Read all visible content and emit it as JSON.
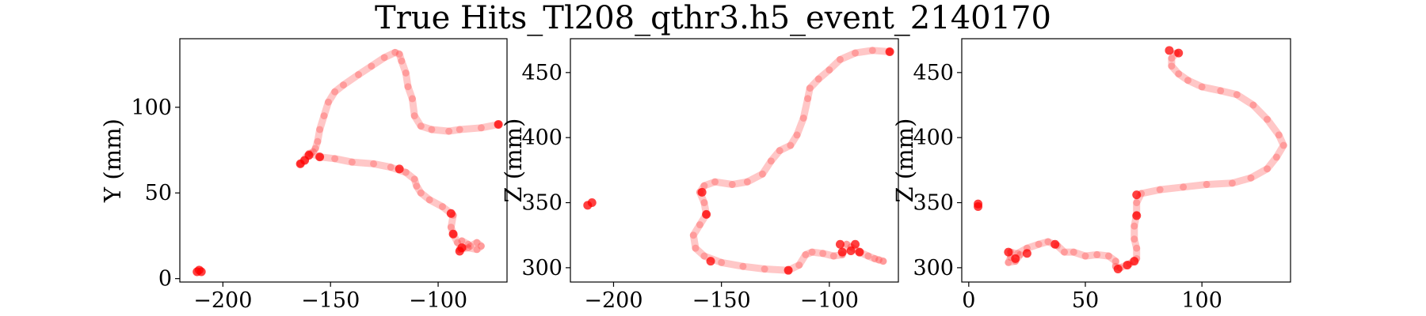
{
  "figure_title": "True Hits_Tl208_qthr3.h5_event_2140170",
  "style": {
    "track_color": "#ff0000",
    "track_opacity": 0.22,
    "blob_opacity": 0.75
  },
  "chart_data": [
    {
      "type": "scatter",
      "xlabel": "",
      "ylabel": "Y (mm)",
      "xlim": [
        -220,
        -68
      ],
      "ylim": [
        -2,
        140
      ],
      "xticks": [
        -200,
        -150,
        -100
      ],
      "xtick_labels": [
        "−200",
        "−150",
        "−100"
      ],
      "yticks": [
        0,
        50,
        100
      ],
      "ytick_labels": [
        "0",
        "50",
        "100"
      ],
      "grid": false,
      "track": [
        [
          -72,
          90
        ],
        [
          -80,
          88
        ],
        [
          -90,
          87
        ],
        [
          -95,
          86
        ],
        [
          -103,
          87
        ],
        [
          -108,
          89
        ],
        [
          -111,
          95
        ],
        [
          -112,
          105
        ],
        [
          -114,
          112
        ],
        [
          -115,
          120
        ],
        [
          -117,
          127
        ],
        [
          -118,
          131
        ],
        [
          -120,
          132
        ],
        [
          -125,
          129
        ],
        [
          -131,
          124
        ],
        [
          -137,
          119
        ],
        [
          -144,
          113
        ],
        [
          -148,
          109
        ],
        [
          -151,
          103
        ],
        [
          -153,
          95
        ],
        [
          -155,
          87
        ],
        [
          -156,
          80
        ],
        [
          -157,
          76
        ],
        [
          -158,
          74
        ],
        [
          -160,
          73
        ],
        [
          -164,
          67
        ],
        [
          -159,
          73
        ],
        [
          -155,
          71
        ],
        [
          -148,
          70
        ],
        [
          -140,
          68
        ],
        [
          -130,
          67
        ],
        [
          -122,
          65
        ],
        [
          -115,
          62
        ],
        [
          -111,
          58
        ],
        [
          -110,
          54
        ],
        [
          -108,
          50
        ],
        [
          -104,
          46
        ],
        [
          -98,
          42
        ],
        [
          -93,
          37
        ],
        [
          -94,
          30
        ],
        [
          -93,
          26
        ],
        [
          -91,
          21
        ],
        [
          -88,
          18
        ],
        [
          -85,
          19
        ],
        [
          -82,
          21
        ],
        [
          -80,
          19
        ],
        [
          -82,
          17
        ],
        [
          -86,
          18
        ],
        [
          -90,
          17
        ],
        [
          -89,
          22
        ],
        [
          -86,
          20
        ]
      ],
      "blobs": [
        [
          -72,
          90
        ],
        [
          -160,
          72
        ],
        [
          -155,
          71
        ],
        [
          -164,
          67
        ],
        [
          -162,
          69
        ],
        [
          -118,
          64
        ],
        [
          -94,
          38
        ],
        [
          -93,
          26
        ],
        [
          -89,
          18
        ],
        [
          -90,
          16
        ],
        [
          -211,
          5
        ],
        [
          -212,
          4
        ],
        [
          -210,
          4
        ]
      ]
    },
    {
      "type": "scatter",
      "xlabel": "",
      "ylabel": "Z (mm)",
      "xlim": [
        -220,
        -68
      ],
      "ylim": [
        289,
        476
      ],
      "xticks": [
        -200,
        -150,
        -100
      ],
      "xtick_labels": [
        "−200",
        "−150",
        "−100"
      ],
      "yticks": [
        300,
        350,
        400,
        450
      ],
      "ytick_labels": [
        "300",
        "350",
        "400",
        "450"
      ],
      "grid": false,
      "track": [
        [
          -72,
          466
        ],
        [
          -80,
          467
        ],
        [
          -88,
          465
        ],
        [
          -95,
          460
        ],
        [
          -100,
          452
        ],
        [
          -105,
          445
        ],
        [
          -109,
          438
        ],
        [
          -110,
          430
        ],
        [
          -112,
          415
        ],
        [
          -115,
          402
        ],
        [
          -118,
          394
        ],
        [
          -123,
          390
        ],
        [
          -127,
          382
        ],
        [
          -131,
          372
        ],
        [
          -138,
          366
        ],
        [
          -145,
          364
        ],
        [
          -153,
          366
        ],
        [
          -158,
          363
        ],
        [
          -160,
          358
        ],
        [
          -158,
          350
        ],
        [
          -157,
          341
        ],
        [
          -160,
          333
        ],
        [
          -163,
          325
        ],
        [
          -162,
          315
        ],
        [
          -158,
          309
        ],
        [
          -150,
          304
        ],
        [
          -140,
          301
        ],
        [
          -130,
          299
        ],
        [
          -119,
          298
        ],
        [
          -114,
          302
        ],
        [
          -111,
          310
        ],
        [
          -108,
          312
        ],
        [
          -103,
          311
        ],
        [
          -98,
          309
        ],
        [
          -94,
          310
        ],
        [
          -92,
          318
        ],
        [
          -90,
          316
        ],
        [
          -86,
          312
        ],
        [
          -82,
          309
        ],
        [
          -79,
          307
        ],
        [
          -77,
          306
        ],
        [
          -75,
          305
        ]
      ],
      "blobs": [
        [
          -72,
          466
        ],
        [
          -159,
          358
        ],
        [
          -157,
          341
        ],
        [
          -155,
          305
        ],
        [
          -119,
          298
        ],
        [
          -95,
          318
        ],
        [
          -94,
          312
        ],
        [
          -90,
          313
        ],
        [
          -88,
          318
        ],
        [
          -86,
          312
        ],
        [
          -212,
          348
        ],
        [
          -210,
          350
        ]
      ]
    },
    {
      "type": "scatter",
      "xlabel": "",
      "ylabel": "Z (mm)",
      "xlim": [
        -3,
        138
      ],
      "ylim": [
        289,
        476
      ],
      "xticks": [
        0,
        50,
        100
      ],
      "xtick_labels": [
        "0",
        "50",
        "100"
      ],
      "yticks": [
        300,
        350,
        400,
        450
      ],
      "ytick_labels": [
        "300",
        "350",
        "400",
        "450"
      ],
      "grid": false,
      "track": [
        [
          89,
          465
        ],
        [
          87,
          461
        ],
        [
          87,
          455
        ],
        [
          90,
          449
        ],
        [
          94,
          444
        ],
        [
          100,
          439
        ],
        [
          108,
          436
        ],
        [
          115,
          433
        ],
        [
          122,
          425
        ],
        [
          128,
          414
        ],
        [
          133,
          402
        ],
        [
          135,
          394
        ],
        [
          132,
          385
        ],
        [
          128,
          376
        ],
        [
          121,
          369
        ],
        [
          113,
          365
        ],
        [
          102,
          364
        ],
        [
          92,
          362
        ],
        [
          82,
          360
        ],
        [
          74,
          357
        ],
        [
          72,
          350
        ],
        [
          72,
          341
        ],
        [
          71,
          332
        ],
        [
          71,
          322
        ],
        [
          72,
          315
        ],
        [
          72,
          307
        ],
        [
          69,
          303
        ],
        [
          65,
          300
        ],
        [
          63,
          301
        ],
        [
          63,
          305
        ],
        [
          60,
          309
        ],
        [
          55,
          310
        ],
        [
          50,
          309
        ],
        [
          45,
          312
        ],
        [
          41,
          312
        ],
        [
          38,
          317
        ],
        [
          34,
          320
        ],
        [
          30,
          318
        ],
        [
          25,
          315
        ],
        [
          21,
          311
        ],
        [
          18,
          308
        ],
        [
          17,
          304
        ],
        [
          20,
          305
        ],
        [
          22,
          310
        ],
        [
          18,
          312
        ]
      ],
      "blobs": [
        [
          86,
          467
        ],
        [
          90,
          465
        ],
        [
          72,
          356
        ],
        [
          72,
          340
        ],
        [
          71,
          305
        ],
        [
          68,
          302
        ],
        [
          64,
          299
        ],
        [
          25,
          311
        ],
        [
          17,
          312
        ],
        [
          20,
          307
        ],
        [
          37,
          318
        ],
        [
          4,
          349
        ],
        [
          4,
          347
        ]
      ]
    }
  ]
}
